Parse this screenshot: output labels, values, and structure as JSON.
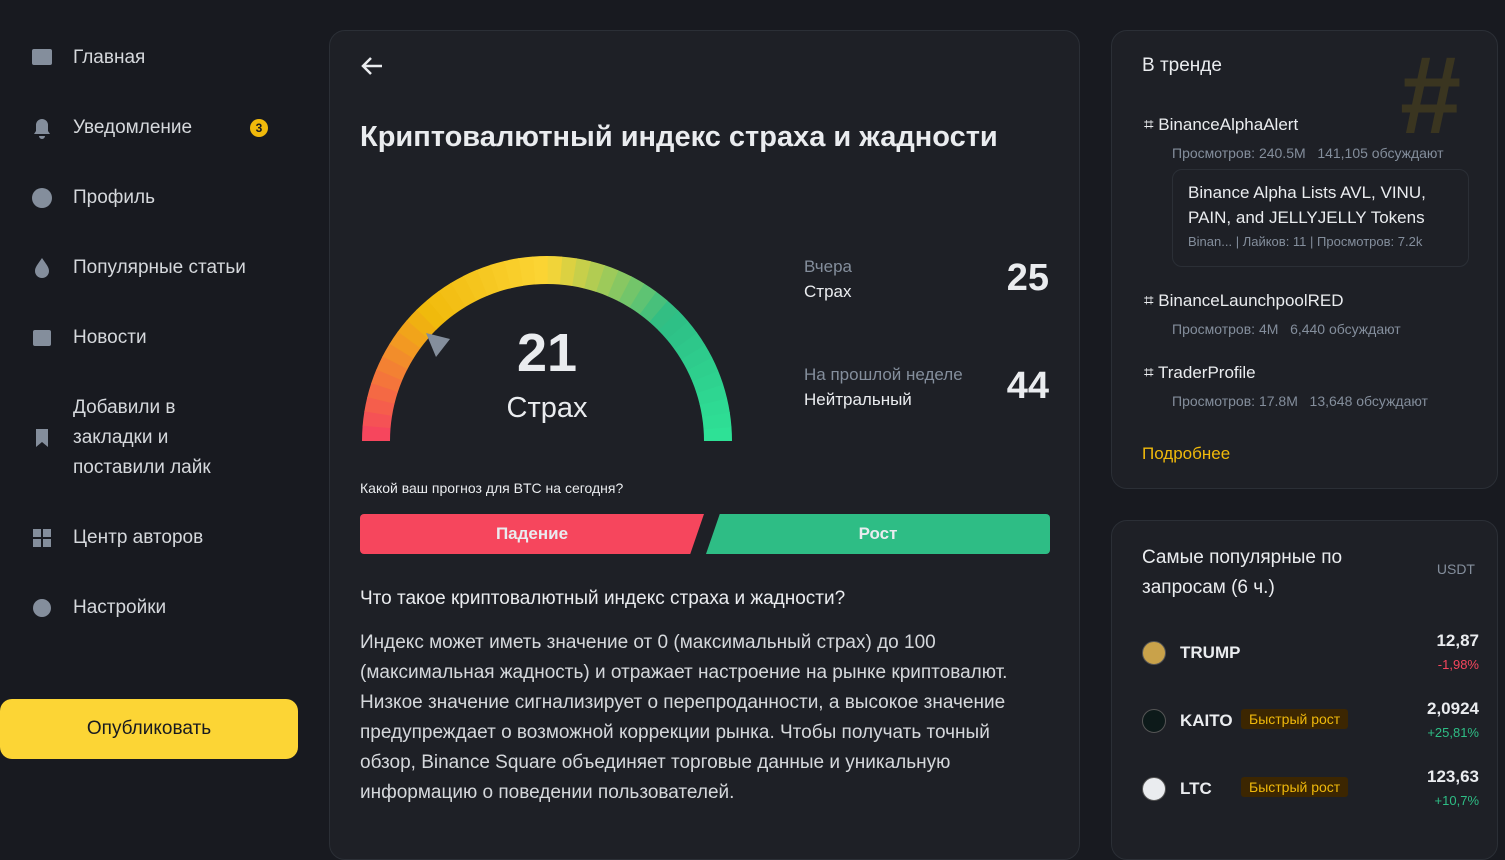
{
  "sidebar": {
    "nav": [
      {
        "label": "Главная"
      },
      {
        "label": "Уведомление",
        "badge": 3
      },
      {
        "label": "Профиль"
      },
      {
        "label": "Популярные статьи"
      },
      {
        "label": "Новости"
      },
      {
        "label": "Добавили в закладки и поставили лайк"
      },
      {
        "label": "Центр авторов"
      },
      {
        "label": "Настройки"
      }
    ],
    "publish": "Опубликовать"
  },
  "main": {
    "title": "Криптовалютный индекс страха и жадности",
    "gauge": {
      "value": 21,
      "label": "Страх"
    },
    "yesterday": {
      "period": "Вчера",
      "label": "Страх",
      "value": 25
    },
    "last_week": {
      "period": "На прошлой неделе",
      "label": "Нейтральный",
      "value": 44
    },
    "prediction": {
      "question": "Какой ваш прогноз для BTC на сегодня?",
      "down": "Падение",
      "up": "Рост"
    },
    "faq": {
      "question": "Что такое криптовалютный индекс страха и жадности?",
      "answer": "Индекс может иметь значение от 0 (максимальный страх) до 100 (максимальная жадность) и отражает настроение на рынке криптовалют. Низкое значение сигнализирует о перепроданности, а высокое значение предупреждает о возможной коррекции рынка. Чтобы получать точный обзор, Binance Square объединяет торговые данные и уникальную информацию о поведении пользователей."
    }
  },
  "trending": {
    "title": "В тренде",
    "items": [
      {
        "tag": "BinanceAlphaAlert",
        "views": "Просмотров: 240.5M",
        "discussing": "141,105 обсуждают",
        "post": {
          "title": "Binance Alpha Lists AVL, VINU, PAIN, and JELLYJELLY Tokens",
          "author": "Binan...",
          "likes": "Лайков: 11",
          "views": "Просмотров: 7.2k"
        }
      },
      {
        "tag": "BinanceLaunchpoolRED",
        "views": "Просмотров: 4M",
        "discussing": "6,440 обсуждают"
      },
      {
        "tag": "TraderProfile",
        "views": "Просмотров: 17.8M",
        "discussing": "13,648 обсуждают"
      }
    ],
    "more": "Подробнее"
  },
  "popular": {
    "title": "Самые популярные по запросам (6 ч.)",
    "unit": "USDT",
    "coins": [
      {
        "symbol": "TRUMP",
        "price": "12,87",
        "change": "-1,98%"
      },
      {
        "symbol": "KAITO",
        "tag": "Быстрый рост",
        "price": "2,0924",
        "change": "+25,81%"
      },
      {
        "symbol": "LTC",
        "tag": "Быстрый рост",
        "price": "123,63",
        "change": "+10,7%"
      }
    ]
  }
}
